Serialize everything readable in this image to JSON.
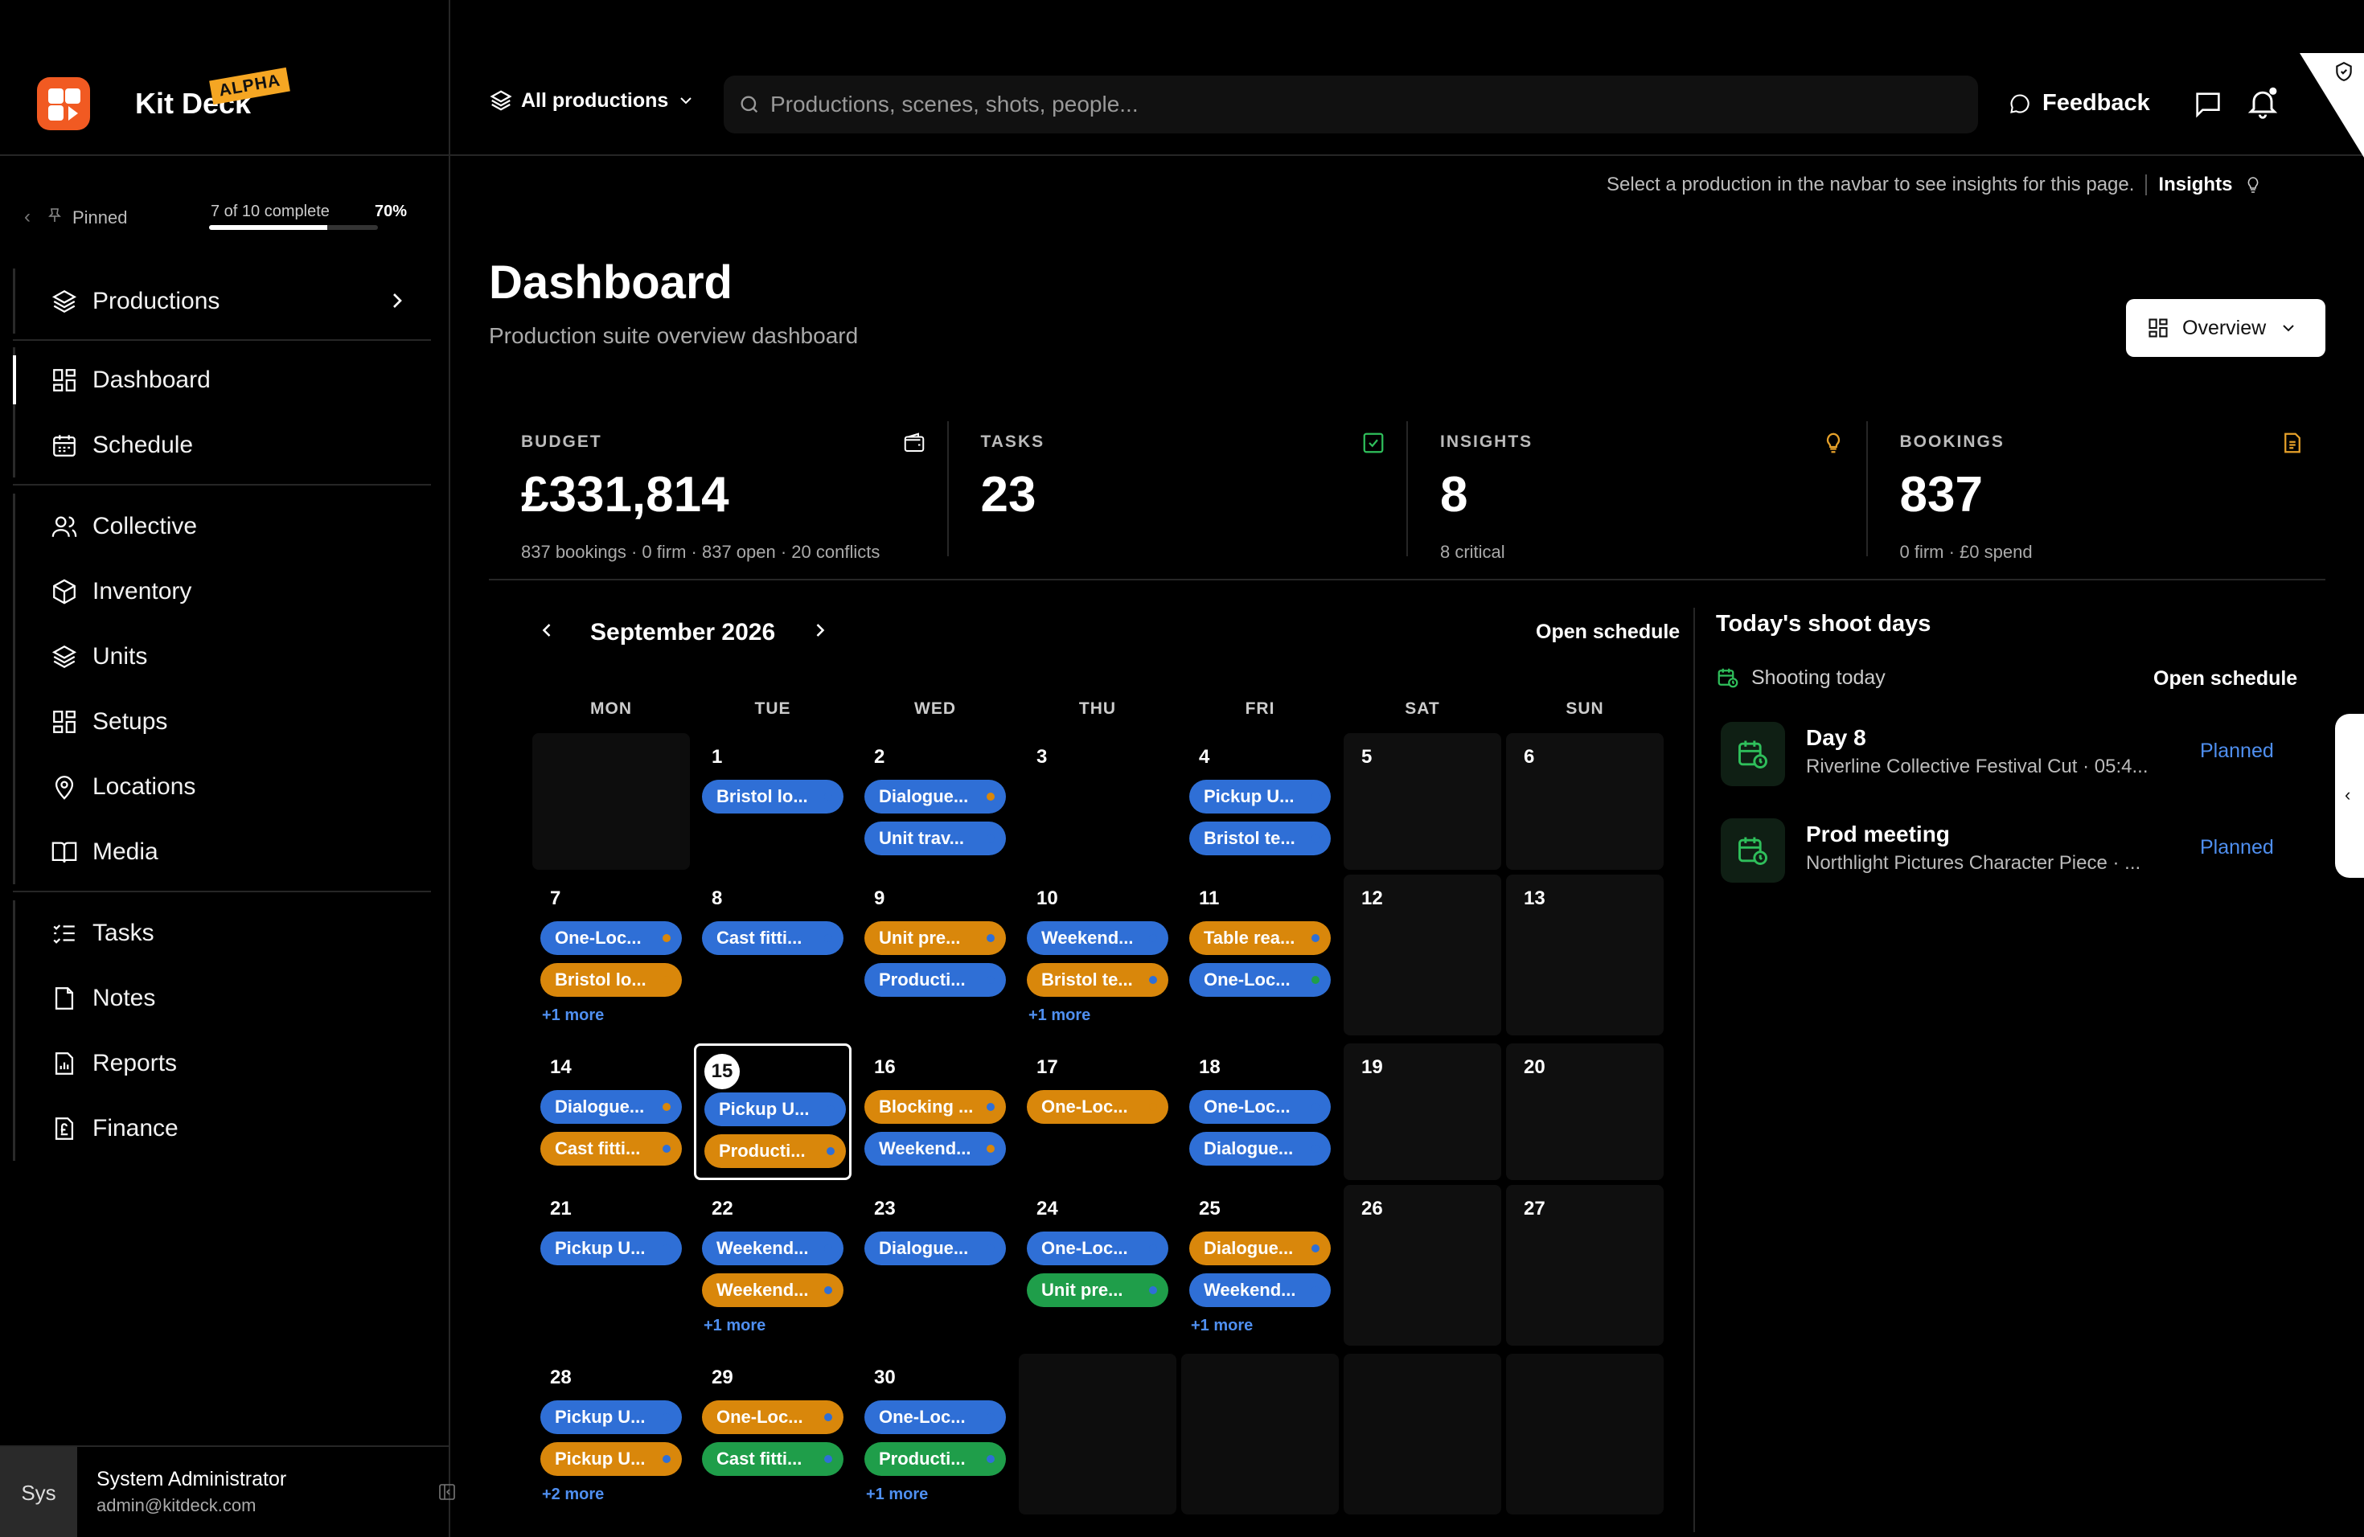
{
  "brand": {
    "name": "Kit Deck",
    "badge": "ALPHA"
  },
  "pinned": {
    "label": "Pinned",
    "progress_text": "7 of 10 complete",
    "progress_fraction": 0.7,
    "percent": "70%"
  },
  "nav": {
    "productions": "Productions",
    "dashboard": "Dashboard",
    "schedule": "Schedule",
    "collective": "Collective",
    "inventory": "Inventory",
    "units": "Units",
    "setups": "Setups",
    "locations": "Locations",
    "media": "Media",
    "tasks": "Tasks",
    "notes": "Notes",
    "reports": "Reports",
    "finance": "Finance"
  },
  "user": {
    "avatar": "Sys",
    "name": "System Administrator",
    "email": "admin@kitdeck.com"
  },
  "topbar": {
    "production_switch": "All productions",
    "search_placeholder": "Productions, scenes, shots, people...",
    "feedback": "Feedback"
  },
  "insight_bar": {
    "text": "Select a production in the navbar to see insights for this page.",
    "link": "Insights"
  },
  "page": {
    "title": "Dashboard",
    "subtitle": "Production suite overview dashboard",
    "view_button": "Overview"
  },
  "stats": [
    {
      "label": "BUDGET",
      "value": "£331,814",
      "sub": "837 bookings · 0 firm · 837 open · 20 conflicts",
      "icon": "wallet-icon"
    },
    {
      "label": "TASKS",
      "value": "23",
      "sub": "",
      "icon": "check-square-icon"
    },
    {
      "label": "INSIGHTS",
      "value": "8",
      "sub": "8 critical",
      "icon": "lightbulb-icon"
    },
    {
      "label": "BOOKINGS",
      "value": "837",
      "sub": "0 firm · £0 spend",
      "icon": "document-icon"
    }
  ],
  "calendar": {
    "month": "September 2026",
    "open_schedule": "Open schedule",
    "weekdays": [
      "MON",
      "TUE",
      "WED",
      "THU",
      "FRI",
      "SAT",
      "SUN"
    ],
    "colors": {
      "blue": "#2f6fd6",
      "orange": "#d9870b",
      "green": "#1f9e4a"
    },
    "weeks": [
      [
        null,
        {
          "day": "1",
          "events": [
            {
              "label": "Bristol lo...",
              "color": "blue",
              "dot": "#2f6fd6"
            }
          ]
        },
        {
          "day": "2",
          "events": [
            {
              "label": "Dialogue...",
              "color": "blue",
              "dot": "#d9870b"
            },
            {
              "label": "Unit trav...",
              "color": "blue",
              "dot": "#2f6fd6"
            }
          ]
        },
        {
          "day": "3",
          "events": []
        },
        {
          "day": "4",
          "events": [
            {
              "label": "Pickup U...",
              "color": "blue",
              "dot": "#2f6fd6"
            },
            {
              "label": "Bristol te...",
              "color": "blue",
              "dot": "#2f6fd6"
            }
          ]
        },
        {
          "day": "5",
          "events": [],
          "weekend": true
        },
        {
          "day": "6",
          "events": [],
          "weekend": true
        }
      ],
      [
        {
          "day": "7",
          "events": [
            {
              "label": "One-Loc...",
              "color": "blue",
              "dot": "#d9870b"
            },
            {
              "label": "Bristol lo...",
              "color": "orange",
              "dot": "#d9870b"
            }
          ],
          "more": "+1 more"
        },
        {
          "day": "8",
          "events": [
            {
              "label": "Cast fitti...",
              "color": "blue",
              "dot": "#2f6fd6"
            }
          ]
        },
        {
          "day": "9",
          "events": [
            {
              "label": "Unit pre...",
              "color": "orange",
              "dot": "#2f6fd6"
            },
            {
              "label": "Producti...",
              "color": "blue",
              "dot": "#2f6fd6"
            }
          ]
        },
        {
          "day": "10",
          "events": [
            {
              "label": "Weekend...",
              "color": "blue",
              "dot": "#2f6fd6"
            },
            {
              "label": "Bristol te...",
              "color": "orange",
              "dot": "#2f6fd6"
            }
          ],
          "more": "+1 more"
        },
        {
          "day": "11",
          "events": [
            {
              "label": "Table rea...",
              "color": "orange",
              "dot": "#2f6fd6"
            },
            {
              "label": "One-Loc...",
              "color": "blue",
              "dot": "#1f9e4a"
            }
          ]
        },
        {
          "day": "12",
          "events": [],
          "weekend": true
        },
        {
          "day": "13",
          "events": [],
          "weekend": true
        }
      ],
      [
        {
          "day": "14",
          "events": [
            {
              "label": "Dialogue...",
              "color": "blue",
              "dot": "#d9870b"
            },
            {
              "label": "Cast fitti...",
              "color": "orange",
              "dot": "#2f6fd6"
            }
          ]
        },
        {
          "day": "15",
          "today": true,
          "events": [
            {
              "label": "Pickup U...",
              "color": "blue",
              "dot": "#2f6fd6"
            },
            {
              "label": "Producti...",
              "color": "orange",
              "dot": "#2f6fd6"
            }
          ]
        },
        {
          "day": "16",
          "events": [
            {
              "label": "Blocking ...",
              "color": "orange",
              "dot": "#2f6fd6"
            },
            {
              "label": "Weekend...",
              "color": "blue",
              "dot": "#d9870b"
            }
          ]
        },
        {
          "day": "17",
          "events": [
            {
              "label": "One-Loc...",
              "color": "orange",
              "dot": "#d9870b"
            }
          ]
        },
        {
          "day": "18",
          "events": [
            {
              "label": "One-Loc...",
              "color": "blue",
              "dot": "#2f6fd6"
            },
            {
              "label": "Dialogue...",
              "color": "blue",
              "dot": "#2f6fd6"
            }
          ]
        },
        {
          "day": "19",
          "events": [],
          "weekend": true
        },
        {
          "day": "20",
          "events": [],
          "weekend": true
        }
      ],
      [
        {
          "day": "21",
          "events": [
            {
              "label": "Pickup U...",
              "color": "blue",
              "dot": "#2f6fd6"
            }
          ]
        },
        {
          "day": "22",
          "events": [
            {
              "label": "Weekend...",
              "color": "blue",
              "dot": "#2f6fd6"
            },
            {
              "label": "Weekend...",
              "color": "orange",
              "dot": "#2f6fd6"
            }
          ],
          "more": "+1 more"
        },
        {
          "day": "23",
          "events": [
            {
              "label": "Dialogue...",
              "color": "blue",
              "dot": "#2f6fd6"
            }
          ]
        },
        {
          "day": "24",
          "events": [
            {
              "label": "One-Loc...",
              "color": "blue",
              "dot": "#2f6fd6"
            },
            {
              "label": "Unit pre...",
              "color": "green",
              "dot": "#2f6fd6"
            }
          ]
        },
        {
          "day": "25",
          "events": [
            {
              "label": "Dialogue...",
              "color": "orange",
              "dot": "#2f6fd6"
            },
            {
              "label": "Weekend...",
              "color": "blue",
              "dot": "#2f6fd6"
            }
          ],
          "more": "+1 more"
        },
        {
          "day": "26",
          "events": [],
          "weekend": true
        },
        {
          "day": "27",
          "events": [],
          "weekend": true
        }
      ],
      [
        {
          "day": "28",
          "events": [
            {
              "label": "Pickup U...",
              "color": "blue",
              "dot": "#2f6fd6"
            },
            {
              "label": "Pickup U...",
              "color": "orange",
              "dot": "#2f6fd6"
            }
          ],
          "more": "+2 more"
        },
        {
          "day": "29",
          "events": [
            {
              "label": "One-Loc...",
              "color": "orange",
              "dot": "#2f6fd6"
            },
            {
              "label": "Cast fitti...",
              "color": "green",
              "dot": "#2f6fd6"
            }
          ]
        },
        {
          "day": "30",
          "events": [
            {
              "label": "One-Loc...",
              "color": "blue",
              "dot": "#2f6fd6"
            },
            {
              "label": "Producti...",
              "color": "green",
              "dot": "#2f6fd6"
            }
          ],
          "more": "+1 more"
        },
        null,
        null,
        null,
        null
      ]
    ]
  },
  "shoot_days": {
    "title": "Today's shoot days",
    "subtitle": "Shooting today",
    "open_schedule": "Open schedule",
    "items": [
      {
        "name": "Day 8",
        "desc": "Riverline Collective Festival Cut · 05:4...",
        "status": "Planned"
      },
      {
        "name": "Prod meeting",
        "desc": "Northlight Pictures Character Piece · ...",
        "status": "Planned"
      }
    ]
  }
}
